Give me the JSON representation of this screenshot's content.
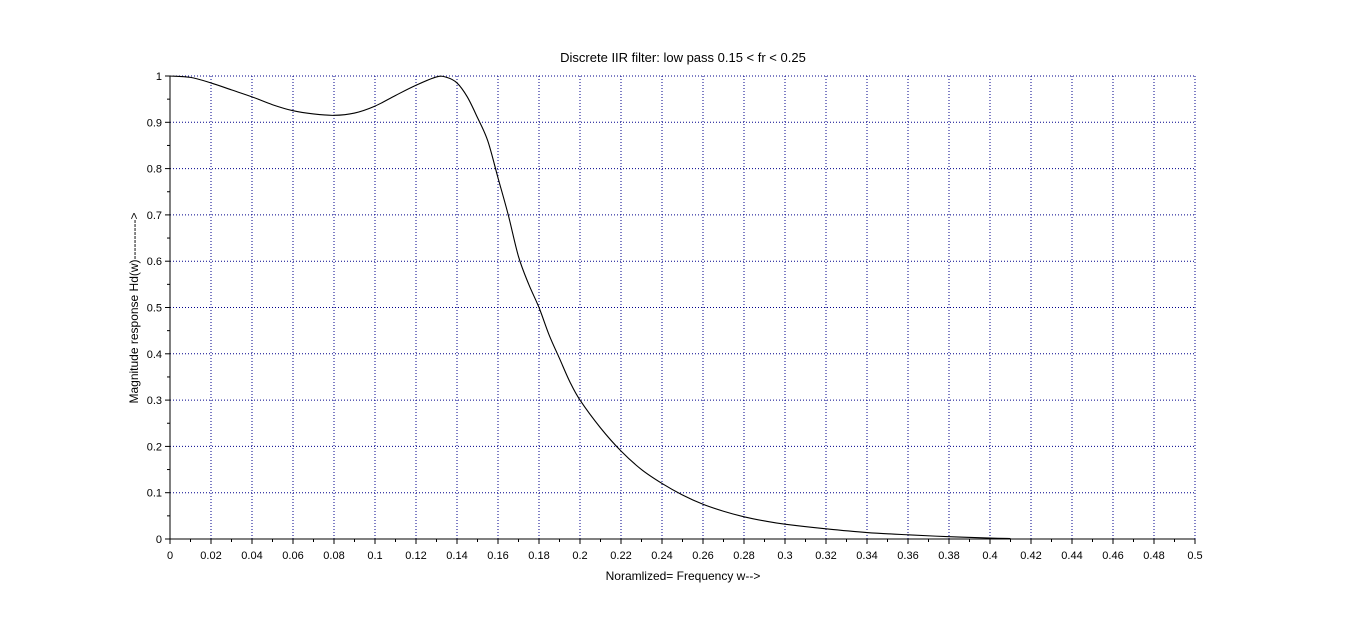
{
  "chart_data": {
    "type": "line",
    "title": "Discrete IIR filter: low pass  0.15 < fr < 0.25",
    "xlabel": "Noramlized= Frequency w-->",
    "ylabel": "Magnitude response Hd(w)---------->",
    "xlim": [
      0,
      0.5
    ],
    "ylim": [
      0,
      1
    ],
    "x_ticks": [
      "0",
      "0.02",
      "0.04",
      "0.06",
      "0.08",
      "0.1",
      "0.12",
      "0.14",
      "0.16",
      "0.18",
      "0.2",
      "0.22",
      "0.24",
      "0.26",
      "0.28",
      "0.3",
      "0.32",
      "0.34",
      "0.36",
      "0.38",
      "0.4",
      "0.42",
      "0.44",
      "0.46",
      "0.48",
      "0.5"
    ],
    "y_ticks": [
      "0",
      "0.1",
      "0.2",
      "0.3",
      "0.4",
      "0.5",
      "0.6",
      "0.7",
      "0.8",
      "0.9",
      "1"
    ],
    "grid": true,
    "series": [
      {
        "color": "#000000",
        "x": [
          0,
          0.01,
          0.02,
          0.03,
          0.04,
          0.05,
          0.06,
          0.07,
          0.08,
          0.09,
          0.1,
          0.11,
          0.12,
          0.13,
          0.135,
          0.14,
          0.145,
          0.15,
          0.155,
          0.16,
          0.165,
          0.17,
          0.175,
          0.18,
          0.185,
          0.19,
          0.195,
          0.2,
          0.21,
          0.22,
          0.23,
          0.24,
          0.25,
          0.26,
          0.27,
          0.28,
          0.29,
          0.3,
          0.32,
          0.34,
          0.36,
          0.38,
          0.4,
          0.41
        ],
        "y": [
          1,
          0.997,
          0.985,
          0.97,
          0.955,
          0.938,
          0.925,
          0.918,
          0.915,
          0.92,
          0.935,
          0.958,
          0.98,
          0.998,
          0.997,
          0.985,
          0.955,
          0.91,
          0.86,
          0.78,
          0.7,
          0.61,
          0.55,
          0.5,
          0.44,
          0.39,
          0.34,
          0.3,
          0.24,
          0.19,
          0.15,
          0.12,
          0.095,
          0.075,
          0.06,
          0.048,
          0.039,
          0.032,
          0.022,
          0.014,
          0.009,
          0.005,
          0.002,
          0.001
        ]
      }
    ]
  }
}
